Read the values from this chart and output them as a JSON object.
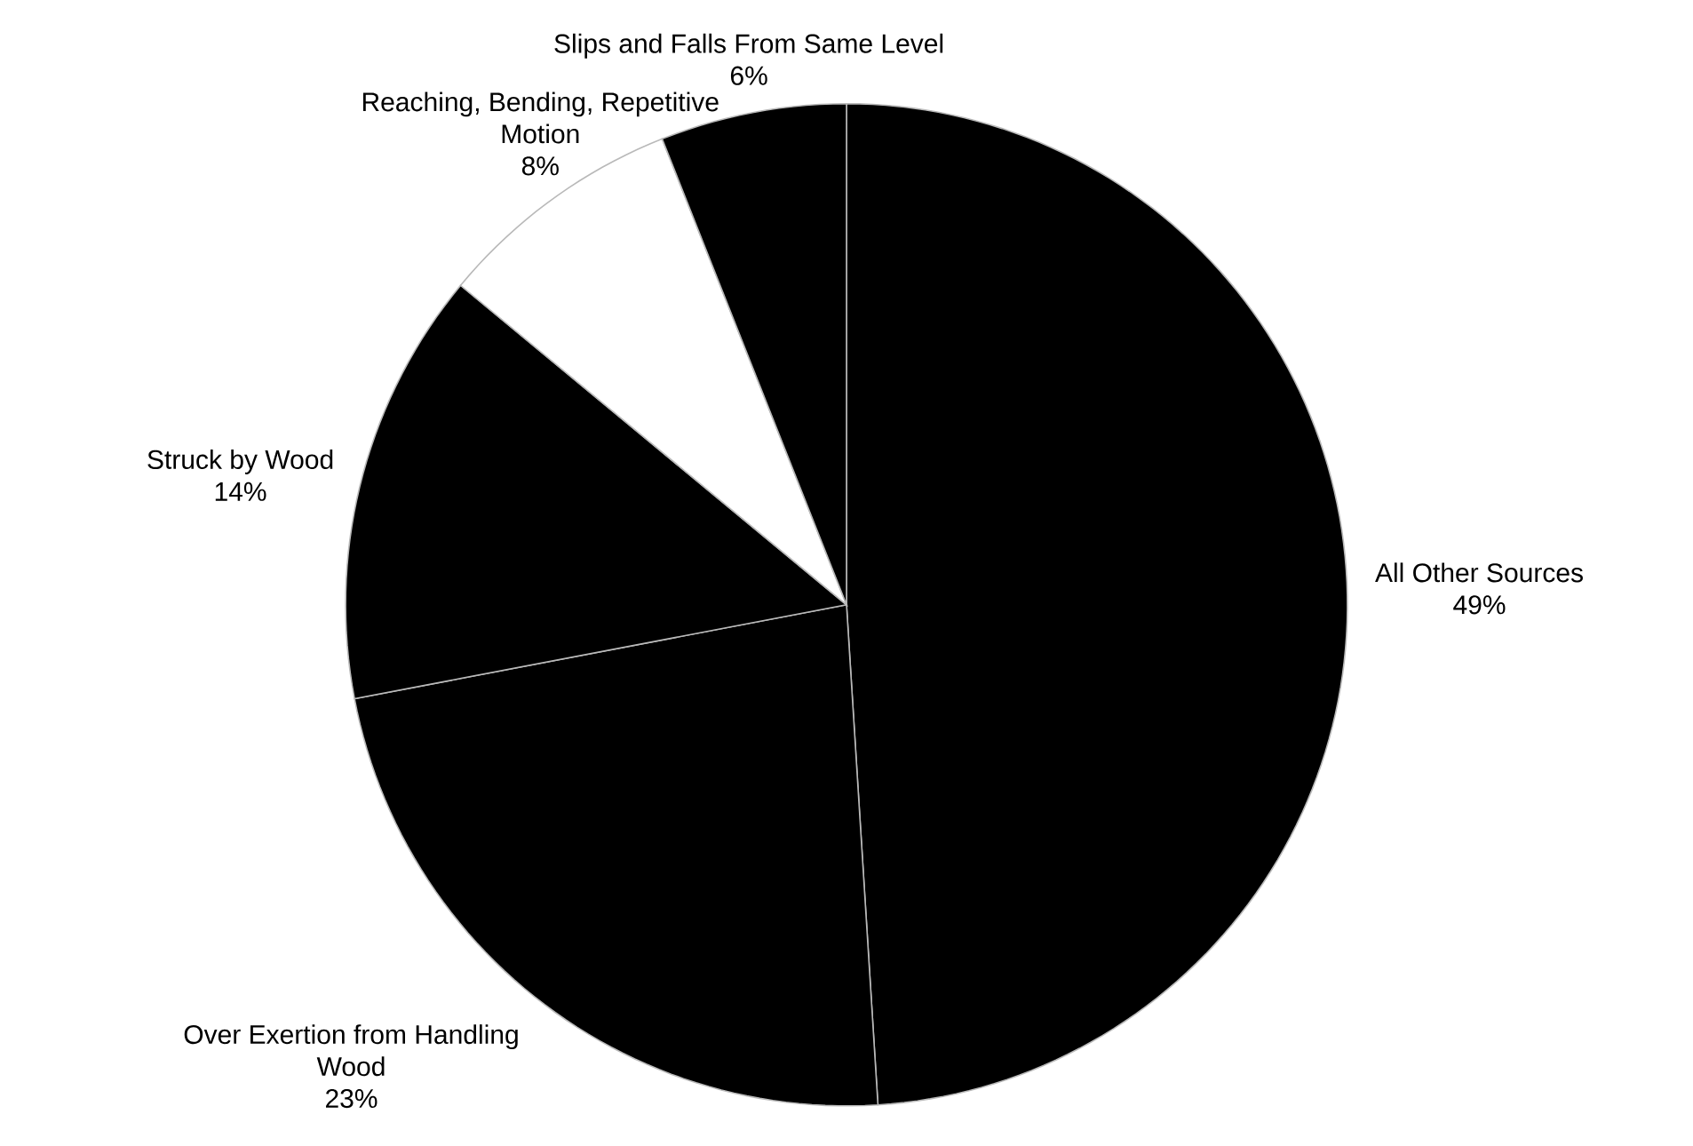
{
  "chart_data": {
    "type": "pie",
    "categories": [
      "All Other Sources",
      "Over Exertion from Handling Wood",
      "Struck by Wood",
      "Reaching, Bending, Repetitive Motion",
      "Slips and Falls From Same Level"
    ],
    "values": [
      49,
      23,
      14,
      8,
      6
    ],
    "value_labels": [
      "49%",
      "23%",
      "14%",
      "8%",
      "6%"
    ],
    "colors": [
      "#000000",
      "#000000",
      "#000000",
      "#ffffff",
      "#000000"
    ]
  }
}
